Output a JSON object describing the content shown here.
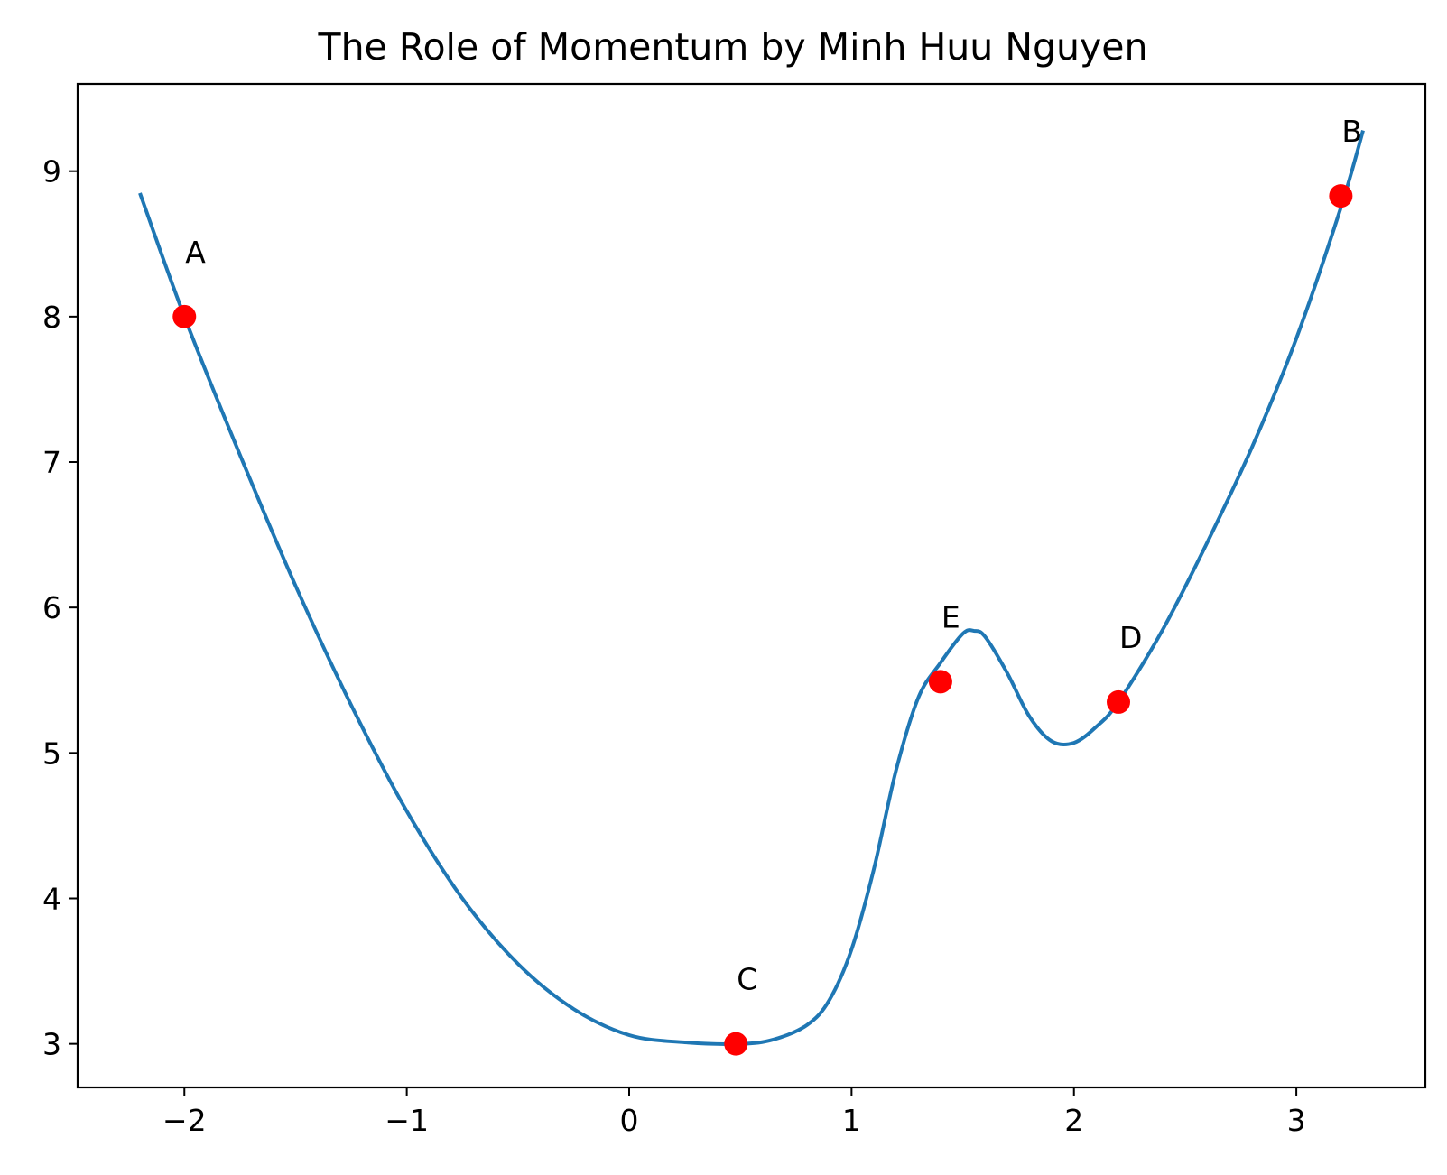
{
  "chart_data": {
    "type": "line",
    "title": "The Role of Momentum by Minh Huu Nguyen",
    "xlabel": "",
    "ylabel": "",
    "xlim": [
      -2.48,
      3.58
    ],
    "ylim": [
      2.7,
      9.6
    ],
    "grid": false,
    "x_ticks": [
      "−2",
      "−1",
      "0",
      "1",
      "2",
      "3"
    ],
    "x_tick_values": [
      -2,
      -1,
      0,
      1,
      2,
      3
    ],
    "y_ticks": [
      "3",
      "4",
      "5",
      "6",
      "7",
      "8",
      "9"
    ],
    "y_tick_values": [
      3,
      4,
      5,
      6,
      7,
      8,
      9
    ],
    "series": [
      {
        "color": "#1f77b4",
        "x": [
          -2.2,
          -2.0,
          -1.75,
          -1.5,
          -1.25,
          -1.0,
          -0.75,
          -0.5,
          -0.25,
          0.0,
          0.25,
          0.5,
          0.65,
          0.8,
          0.9,
          1.0,
          1.1,
          1.2,
          1.3,
          1.4,
          1.5,
          1.55,
          1.6,
          1.7,
          1.8,
          1.9,
          2.0,
          2.1,
          2.2,
          2.4,
          2.6,
          2.8,
          3.0,
          3.2,
          3.3
        ],
        "y": [
          8.85,
          8.0,
          7.05,
          6.15,
          5.33,
          4.6,
          4.0,
          3.55,
          3.24,
          3.06,
          3.01,
          3.0,
          3.03,
          3.13,
          3.3,
          3.65,
          4.2,
          4.88,
          5.38,
          5.62,
          5.82,
          5.84,
          5.8,
          5.55,
          5.25,
          5.08,
          5.07,
          5.18,
          5.35,
          5.85,
          6.45,
          7.1,
          7.85,
          8.75,
          9.28
        ]
      }
    ],
    "points": {
      "color": "#ff0000",
      "items": [
        {
          "label": "A",
          "x": -2.0,
          "y": 8.0
        },
        {
          "label": "B",
          "x": 3.2,
          "y": 8.83
        },
        {
          "label": "C",
          "x": 0.48,
          "y": 3.0
        },
        {
          "label": "D",
          "x": 2.2,
          "y": 5.35
        },
        {
          "label": "E",
          "x": 1.4,
          "y": 5.49
        }
      ]
    }
  }
}
